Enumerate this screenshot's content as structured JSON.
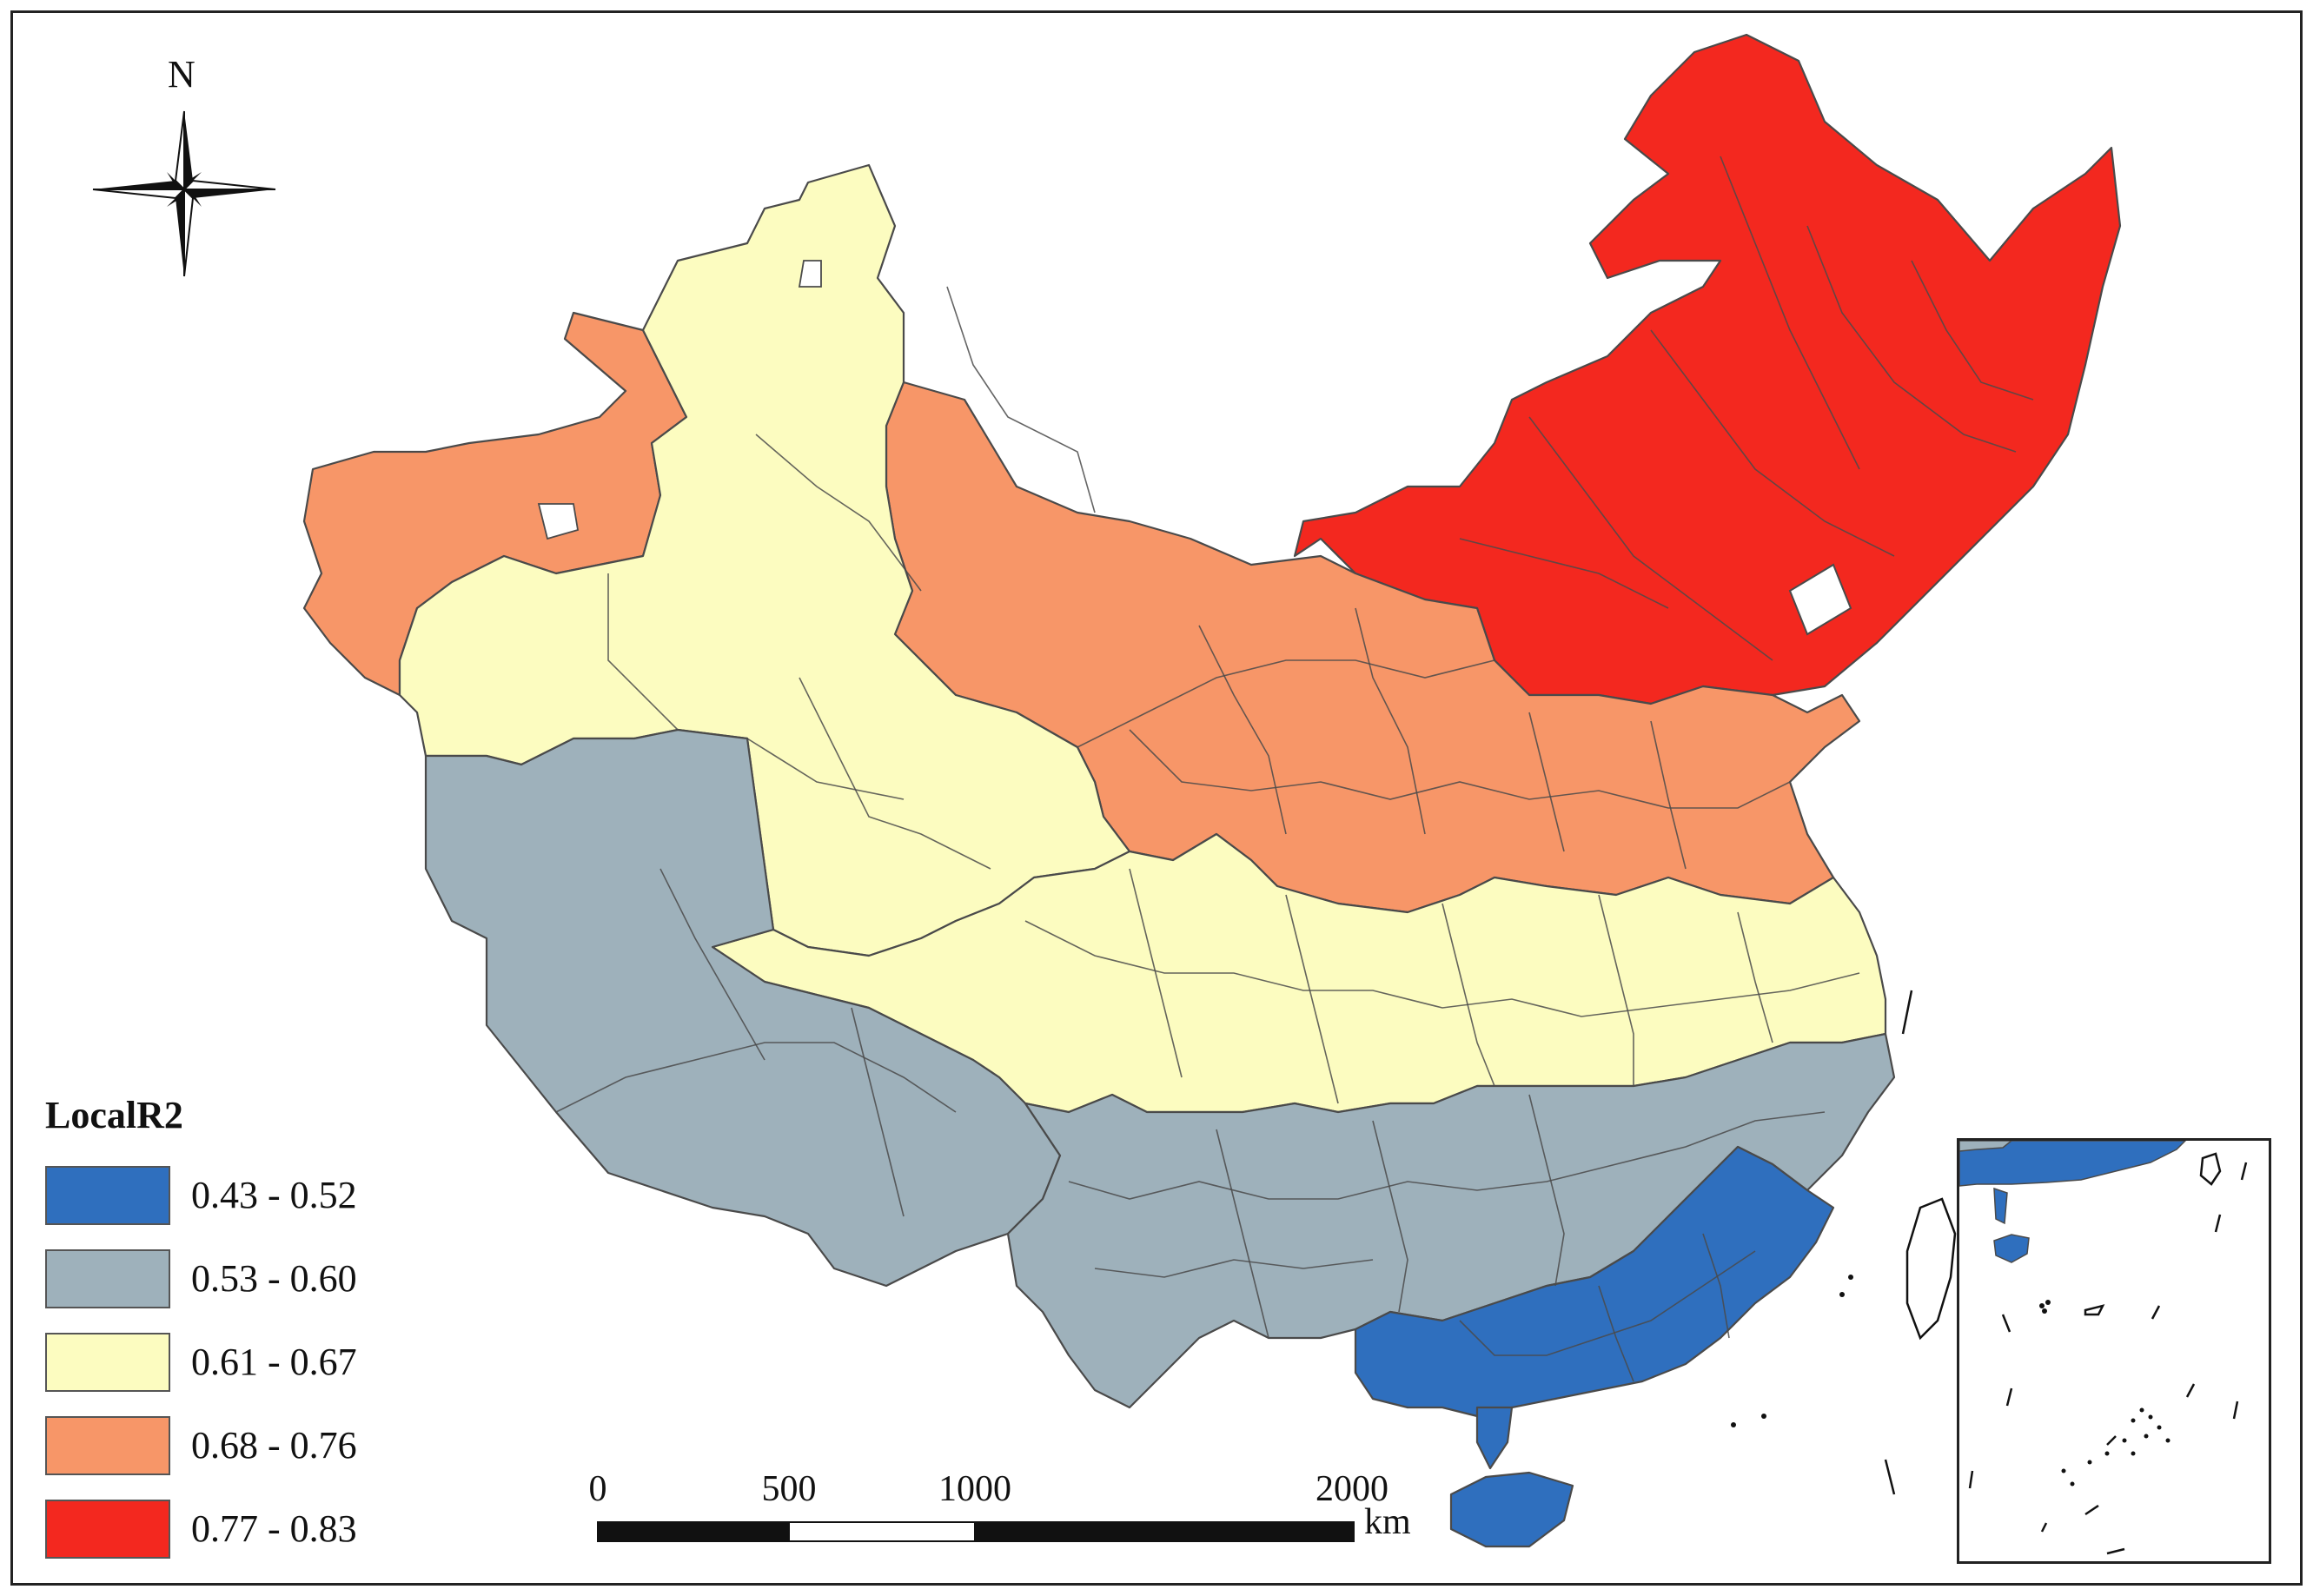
{
  "map": {
    "north_label": "N",
    "legend": {
      "title": "LocalR2",
      "classes": [
        {
          "label": "0.43 - 0.52",
          "color": "#2f6fbe"
        },
        {
          "label": "0.53 - 0.60",
          "color": "#9eb1bb"
        },
        {
          "label": "0.61 - 0.67",
          "color": "#fcfcc0"
        },
        {
          "label": "0.68 - 0.76",
          "color": "#f79668"
        },
        {
          "label": "0.77 - 0.83",
          "color": "#f3281f"
        }
      ]
    },
    "scale_bar": {
      "ticks": [
        "0",
        "500",
        "1000",
        "2000"
      ],
      "unit": "km"
    },
    "icons": [
      "compass-rose-icon"
    ]
  }
}
